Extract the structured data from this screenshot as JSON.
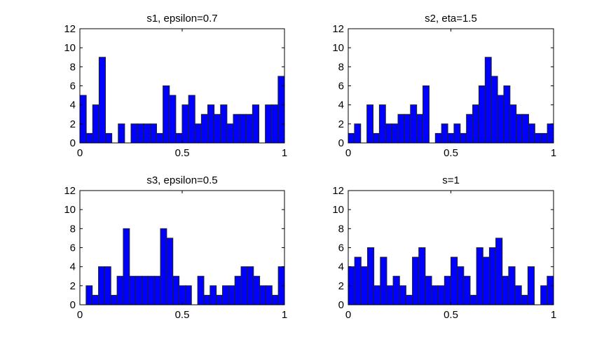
{
  "chart_data": [
    {
      "type": "bar",
      "title": "s1, epsilon=0.7",
      "xlim": [
        0,
        1
      ],
      "ylim": [
        0,
        12
      ],
      "xticks": [
        "0",
        "0.5",
        "1"
      ],
      "yticks": [
        "0",
        "2",
        "4",
        "6",
        "8",
        "10",
        "12"
      ],
      "bar_color": "#0000ff",
      "values": [
        5,
        1,
        4,
        9,
        1,
        0,
        2,
        0,
        2,
        2,
        2,
        2,
        1,
        6,
        5,
        1,
        4,
        5,
        2,
        3,
        4,
        3,
        4,
        2,
        3,
        3,
        3,
        4,
        0,
        4,
        4,
        7
      ]
    },
    {
      "type": "bar",
      "title": "s2, eta=1.5",
      "xlim": [
        0,
        1
      ],
      "ylim": [
        0,
        12
      ],
      "xticks": [
        "0",
        "0.5",
        "1"
      ],
      "yticks": [
        "0",
        "2",
        "4",
        "6",
        "8",
        "10",
        "12"
      ],
      "bar_color": "#0000ff",
      "values": [
        1,
        2,
        0,
        4,
        1,
        4,
        2,
        2,
        3,
        3,
        4,
        3,
        6,
        0,
        1,
        2,
        1,
        2,
        1,
        3,
        4,
        6,
        9,
        7,
        5,
        6,
        4,
        3,
        3,
        2,
        1,
        1,
        2
      ]
    },
    {
      "type": "bar",
      "title": "s3, epsilon=0.5",
      "xlim": [
        0,
        1
      ],
      "ylim": [
        0,
        12
      ],
      "xticks": [
        "0",
        "0.5",
        "1"
      ],
      "yticks": [
        "0",
        "2",
        "4",
        "6",
        "8",
        "10",
        "12"
      ],
      "bar_color": "#0000ff",
      "values": [
        0,
        2,
        1,
        4,
        4,
        1,
        3,
        8,
        3,
        3,
        3,
        3,
        3,
        8,
        7,
        3,
        2,
        2,
        0,
        3,
        1,
        2,
        1,
        2,
        2,
        3,
        4,
        4,
        3,
        2,
        2,
        1,
        4
      ]
    },
    {
      "type": "bar",
      "title": "s=1",
      "xlim": [
        0,
        1
      ],
      "ylim": [
        0,
        12
      ],
      "xticks": [
        "0",
        "0.5",
        "1"
      ],
      "yticks": [
        "0",
        "2",
        "4",
        "6",
        "8",
        "10",
        "12"
      ],
      "bar_color": "#0000ff",
      "values": [
        4,
        5,
        4,
        6,
        2,
        5,
        2,
        3,
        2,
        1,
        5,
        6,
        3,
        2,
        2,
        3,
        5,
        4,
        3,
        1,
        6,
        5,
        6,
        7,
        3,
        4,
        2,
        1,
        4,
        0,
        2,
        3
      ]
    }
  ]
}
